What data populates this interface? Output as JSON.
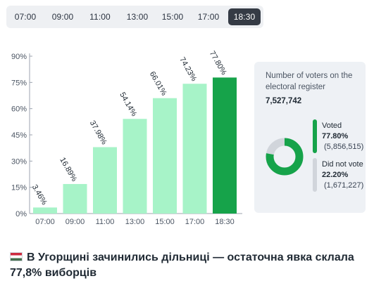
{
  "tabs": [
    {
      "label": "07:00",
      "active": false
    },
    {
      "label": "09:00",
      "active": false
    },
    {
      "label": "11:00",
      "active": false
    },
    {
      "label": "13:00",
      "active": false
    },
    {
      "label": "15:00",
      "active": false
    },
    {
      "label": "17:00",
      "active": false
    },
    {
      "label": "18:30",
      "active": true
    }
  ],
  "chart_data": {
    "type": "bar",
    "categories": [
      "07:00",
      "09:00",
      "11:00",
      "13:00",
      "15:00",
      "17:00",
      "18:30"
    ],
    "values": [
      3.46,
      16.89,
      37.98,
      54.14,
      66.01,
      74.23,
      77.8
    ],
    "value_labels": [
      "3.46%",
      "16.89%",
      "37.98%",
      "54.14%",
      "66.01%",
      "74.23%",
      "77.80%"
    ],
    "yticks": [
      "0%",
      "15%",
      "30%",
      "45%",
      "60%",
      "75%",
      "90%"
    ],
    "ylim": [
      0,
      90
    ],
    "highlight_index": 6,
    "grid": false,
    "colors": {
      "bar": "#a7f3c8",
      "highlight": "#16a34a"
    }
  },
  "stats": {
    "title": "Number of voters on the electoral register",
    "total": "7,527,742",
    "voted_label": "Voted",
    "voted_pct": "77.80%",
    "voted_count": "(5,856,515)",
    "not_voted_label": "Did not vote",
    "not_voted_pct": "22.20%",
    "not_voted_count": "(1,671,227)",
    "voted_fraction": 0.778,
    "colors": {
      "voted": "#16a34a",
      "not_voted": "#d1d5db"
    }
  },
  "caption": {
    "flag_icon": "hungary-flag-icon",
    "text": "В Угорщині зачинились дільниці — остаточна явка склала 77,8% виборців"
  }
}
